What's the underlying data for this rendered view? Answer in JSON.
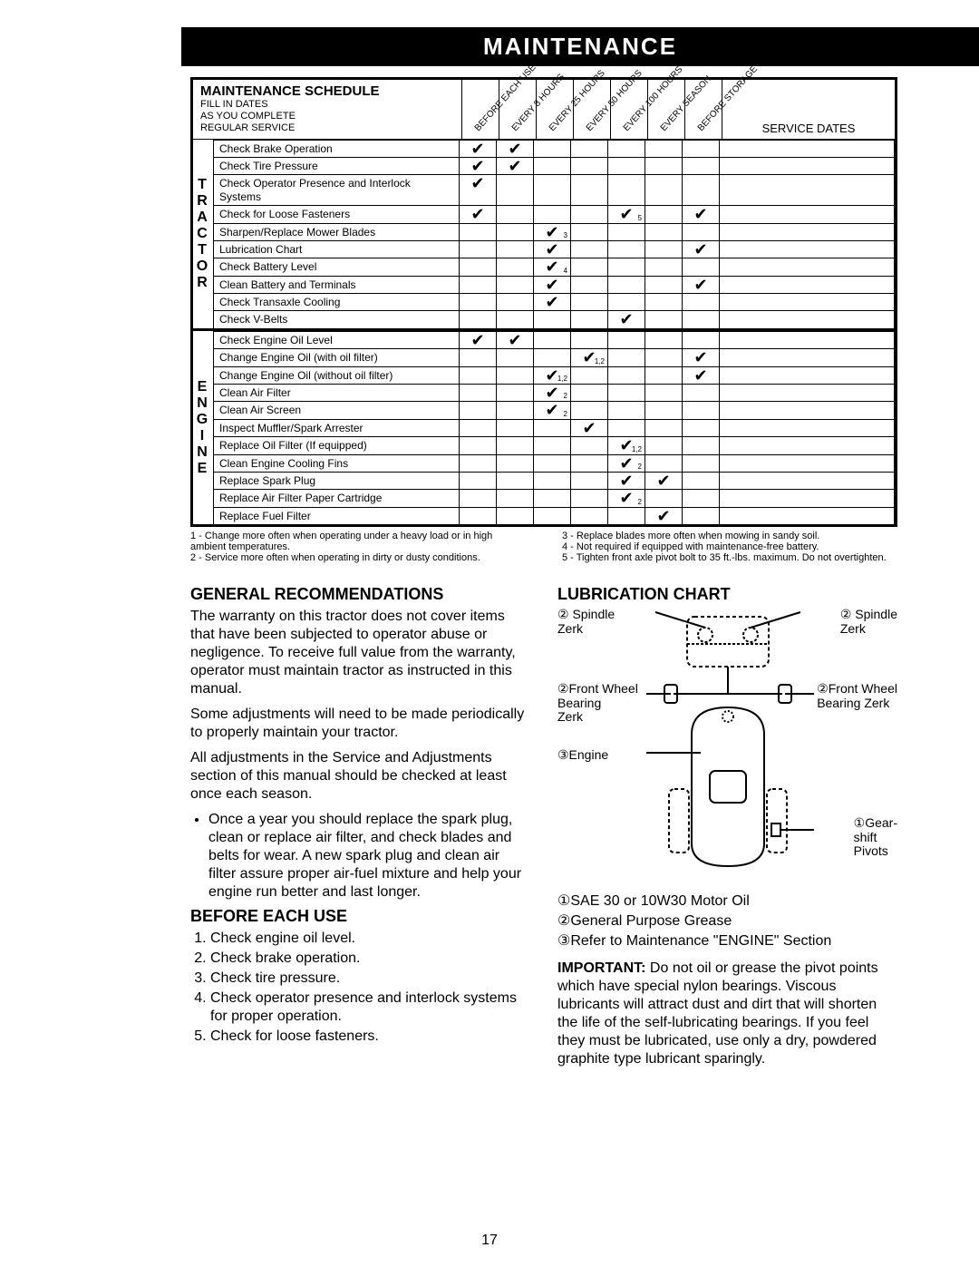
{
  "banner": "MAINTENANCE",
  "schedule": {
    "title": "MAINTENANCE SCHEDULE",
    "subtitle": "FILL IN DATES\nAS YOU COMPLETE\nREGULAR SERVICE",
    "columns": [
      "BEFORE EACH USE",
      "EVERY 8 HOURS",
      "EVERY 25 HOURS",
      "EVERY 50 HOURS",
      "EVERY 100 HOURS",
      "EVERY SEASON",
      "BEFORE STORAGE"
    ],
    "service_dates_label": "SERVICE DATES",
    "sections": [
      {
        "label": "TRACTOR",
        "rows": [
          {
            "task": "Check Brake Operation",
            "marks": [
              "✔",
              "✔",
              "",
              "",
              "",
              "",
              ""
            ]
          },
          {
            "task": "Check Tire Pressure",
            "marks": [
              "✔",
              "✔",
              "",
              "",
              "",
              "",
              ""
            ]
          },
          {
            "task": "Check Operator Presence and Interlock Systems",
            "marks": [
              "✔",
              "",
              "",
              "",
              "",
              "",
              ""
            ]
          },
          {
            "task": "Check for Loose Fasteners",
            "marks": [
              "✔",
              "",
              "",
              "",
              "✔",
              "",
              "✔"
            ],
            "subs": [
              "",
              "",
              "",
              "",
              "5",
              "",
              ""
            ]
          },
          {
            "task": "Sharpen/Replace Mower Blades",
            "marks": [
              "",
              "",
              "✔",
              "",
              "",
              "",
              ""
            ],
            "subs": [
              "",
              "",
              "3",
              "",
              "",
              "",
              ""
            ]
          },
          {
            "task": "Lubrication Chart",
            "marks": [
              "",
              "",
              "✔",
              "",
              "",
              "",
              "✔"
            ]
          },
          {
            "task": "Check Battery Level",
            "marks": [
              "",
              "",
              "✔",
              "",
              "",
              "",
              ""
            ],
            "subs": [
              "",
              "",
              "4",
              "",
              "",
              "",
              ""
            ]
          },
          {
            "task": "Clean Battery and Terminals",
            "marks": [
              "",
              "",
              "✔",
              "",
              "",
              "",
              "✔"
            ]
          },
          {
            "task": "Check Transaxle Cooling",
            "marks": [
              "",
              "",
              "✔",
              "",
              "",
              "",
              ""
            ]
          },
          {
            "task": "Check V-Belts",
            "marks": [
              "",
              "",
              "",
              "",
              "✔",
              "",
              ""
            ]
          }
        ]
      },
      {
        "label": "ENGINE",
        "rows": [
          {
            "task": "Check Engine Oil Level",
            "marks": [
              "✔",
              "✔",
              "",
              "",
              "",
              "",
              ""
            ]
          },
          {
            "task": "Change Engine Oil (with oil filter)",
            "marks": [
              "",
              "",
              "",
              "✔",
              "",
              "",
              "✔"
            ],
            "subs": [
              "",
              "",
              "",
              "1,2",
              "",
              "",
              ""
            ]
          },
          {
            "task": "Change Engine Oil (without oil filter)",
            "marks": [
              "",
              "",
              "✔",
              "",
              "",
              "",
              "✔"
            ],
            "subs": [
              "",
              "",
              "1,2",
              "",
              "",
              "",
              ""
            ]
          },
          {
            "task": "Clean Air Filter",
            "marks": [
              "",
              "",
              "✔",
              "",
              "",
              "",
              ""
            ],
            "subs": [
              "",
              "",
              "2",
              "",
              "",
              "",
              ""
            ]
          },
          {
            "task": "Clean Air Screen",
            "marks": [
              "",
              "",
              "✔",
              "",
              "",
              "",
              ""
            ],
            "subs": [
              "",
              "",
              "2",
              "",
              "",
              "",
              ""
            ]
          },
          {
            "task": "Inspect Muffler/Spark Arrester",
            "marks": [
              "",
              "",
              "",
              "✔",
              "",
              "",
              ""
            ]
          },
          {
            "task": "Replace Oil Filter (If equipped)",
            "marks": [
              "",
              "",
              "",
              "",
              "✔",
              "",
              ""
            ],
            "subs": [
              "",
              "",
              "",
              "",
              "1,2",
              "",
              ""
            ]
          },
          {
            "task": "Clean Engine Cooling Fins",
            "marks": [
              "",
              "",
              "",
              "",
              "✔",
              "",
              ""
            ],
            "subs": [
              "",
              "",
              "",
              "",
              "2",
              "",
              ""
            ]
          },
          {
            "task": "Replace Spark Plug",
            "marks": [
              "",
              "",
              "",
              "",
              "✔",
              "✔",
              ""
            ]
          },
          {
            "task": "Replace Air Filter Paper Cartridge",
            "marks": [
              "",
              "",
              "",
              "",
              "✔",
              "",
              ""
            ],
            "subs": [
              "",
              "",
              "",
              "",
              "2",
              "",
              ""
            ]
          },
          {
            "task": "Replace Fuel Filter",
            "marks": [
              "",
              "",
              "",
              "",
              "",
              "✔",
              ""
            ]
          }
        ]
      }
    ]
  },
  "footnotes_left": "1 - Change more often when operating under a heavy load or in high ambient temperatures.\n2 - Service more often when operating in dirty or dusty conditions.",
  "footnotes_right": "3 - Replace blades more often when mowing in sandy soil.\n4 - Not required if equipped with maintenance-free battery.\n5 - Tighten front axle pivot bolt to 35 ft.-lbs. maximum. Do not overtighten.",
  "general": {
    "heading": "GENERAL RECOMMENDATIONS",
    "p1": "The warranty on this tractor does not cover items that have been subjected to operator abuse or negligence. To receive full value from the warranty, operator must maintain tractor as instructed in this manual.",
    "p2": "Some adjustments will need to be made periodically to properly maintain your tractor.",
    "p3": "All adjustments in the Service and Adjustments section of this manual should be checked at least once each season.",
    "bullet": "Once a year you should replace the spark plug, clean or replace air filter, and check blades and belts for wear. A new spark plug and clean air filter assure proper air-fuel mixture and help your engine run better and last longer."
  },
  "before": {
    "heading": "BEFORE EACH USE",
    "items": [
      "Check engine oil level.",
      "Check brake operation.",
      "Check tire pressure.",
      "Check operator presence and interlock systems for proper operation.",
      "Check for loose fasteners."
    ]
  },
  "lubrication": {
    "heading": "LUBRICATION CHART",
    "labels": {
      "spindle_zerk_l": "② Spindle\nZerk",
      "spindle_zerk_r": "② Spindle\nZerk",
      "front_wheel_l": "②Front Wheel\nBearing\nZerk",
      "front_wheel_r": "②Front Wheel\nBearing Zerk",
      "engine": "③Engine",
      "gearshift": "①Gear-\nshift\nPivots"
    },
    "legend1": "①SAE 30 or 10W30 Motor Oil",
    "legend2": "②General Purpose Grease",
    "legend3": "③Refer to Maintenance \"ENGINE\" Section",
    "important": "IMPORTANT:  Do not oil or grease the pivot points which have special nylon bearings. Viscous lubricants will attract dust and dirt that will shorten the life of the self-lubricating bearings. If you feel they must be lubricated, use only a dry, powdered graphite type lubricant sparingly."
  },
  "page_number": "17"
}
